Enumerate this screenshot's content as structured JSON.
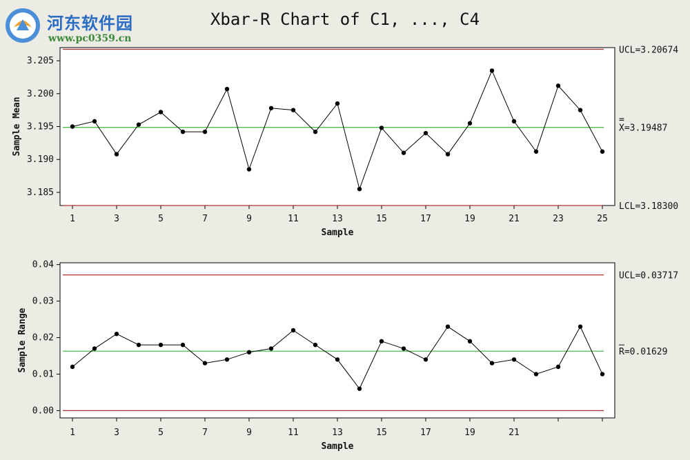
{
  "title": "Xbar-R Chart of C1, ..., C4",
  "logo": {
    "brand": "河东软件园",
    "url": "www.pc0359.cn",
    "icon": "logo-icon"
  },
  "colors": {
    "background": "#ecebe4",
    "plot_background": "#ffffff",
    "limit_line": "#b03030",
    "center_line": "#3cb43c",
    "series_line": "#000000"
  },
  "chart_data": [
    {
      "type": "line",
      "id": "xbar",
      "xlabel": "Sample",
      "ylabel": "Sample Mean",
      "xlim": [
        1,
        25
      ],
      "ylim": [
        3.183,
        3.207
      ],
      "xticks": [
        1,
        3,
        5,
        7,
        9,
        11,
        13,
        15,
        17,
        19,
        21,
        23,
        25
      ],
      "yticks": [
        3.185,
        3.19,
        3.195,
        3.2,
        3.205
      ],
      "ytick_labels": [
        "3.185",
        "3.190",
        "3.195",
        "3.200",
        "3.205"
      ],
      "x": [
        1,
        2,
        3,
        4,
        5,
        6,
        7,
        8,
        9,
        10,
        11,
        12,
        13,
        14,
        15,
        16,
        17,
        18,
        19,
        20,
        21,
        22,
        23,
        24,
        25
      ],
      "values": [
        3.195,
        3.1958,
        3.1908,
        3.1953,
        3.1972,
        3.1942,
        3.1942,
        3.2007,
        3.1885,
        3.1978,
        3.1975,
        3.1942,
        3.1985,
        3.1855,
        3.1948,
        3.191,
        3.194,
        3.1908,
        3.1955,
        3.2035,
        3.1958,
        3.1912,
        3.2012,
        3.1975,
        3.1912
      ],
      "ucl": 3.20674,
      "center": 3.19487,
      "lcl": 3.183,
      "ucl_label": "UCL=3.20674",
      "center_label": "X=3.19487",
      "center_bar": "=",
      "lcl_label": "LCL=3.18300",
      "grid": false
    },
    {
      "type": "line",
      "id": "range",
      "xlabel": "Sample",
      "ylabel": "Sample Range",
      "xlim": [
        1,
        25
      ],
      "ylim": [
        -0.002,
        0.0405
      ],
      "xticks": [
        1,
        3,
        5,
        7,
        9,
        11,
        13,
        15,
        17,
        19,
        21,
        23,
        25
      ],
      "xtick_labels_visible": [
        "1",
        "3",
        "5",
        "7",
        "9",
        "11",
        "13",
        "15",
        "17",
        "19",
        "21",
        "",
        ""
      ],
      "yticks": [
        0.0,
        0.01,
        0.02,
        0.03,
        0.04
      ],
      "ytick_labels": [
        "0.00",
        "0.01",
        "0.02",
        "0.03",
        "0.04"
      ],
      "x": [
        1,
        2,
        3,
        4,
        5,
        6,
        7,
        8,
        9,
        10,
        11,
        12,
        13,
        14,
        15,
        16,
        17,
        18,
        19,
        20,
        21,
        22,
        23,
        24,
        25
      ],
      "values": [
        0.012,
        0.017,
        0.021,
        0.018,
        0.018,
        0.018,
        0.013,
        0.014,
        0.016,
        0.017,
        0.022,
        0.018,
        0.014,
        0.006,
        0.019,
        0.017,
        0.014,
        0.023,
        0.019,
        0.013,
        0.014,
        0.01,
        0.012,
        0.023,
        0.01
      ],
      "ucl": 0.03717,
      "center": 0.01629,
      "lcl": 0,
      "ucl_label": "UCL=0.03717",
      "center_label": "R=0.01629",
      "center_bar": "_",
      "lcl_label": "",
      "grid": false
    }
  ]
}
